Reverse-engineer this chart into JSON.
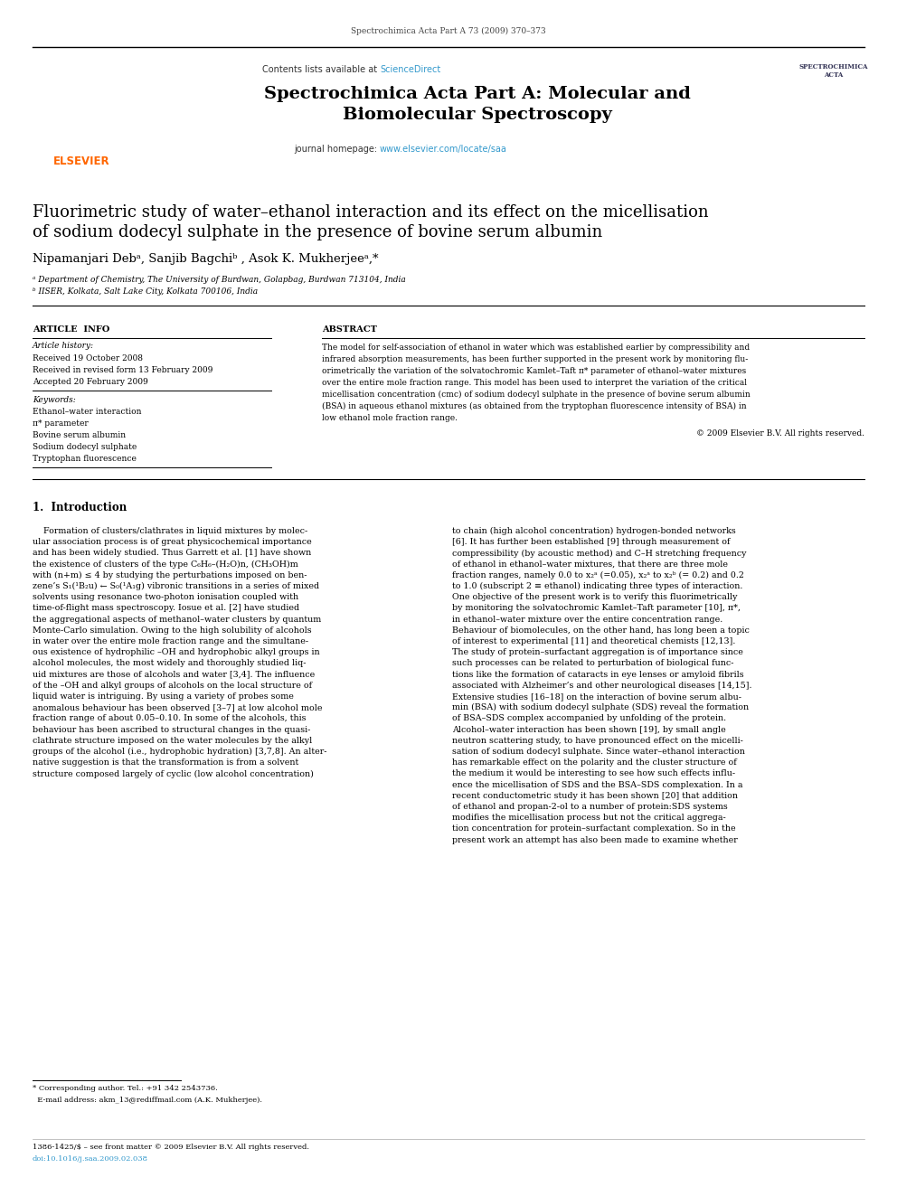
{
  "page_width": 9.92,
  "page_height": 13.23,
  "dpi": 100,
  "bg_color": "#ffffff",
  "header_journal": "Spectrochimica Acta Part A 73 (2009) 370–373",
  "journal_name_line1": "Spectrochimica Acta Part A: Molecular and",
  "journal_name_line2": "Biomolecular Spectroscopy",
  "contents_text_plain": "Contents lists available at ",
  "contents_text_link": "ScienceDirect",
  "sciencedirect_color": "#3399cc",
  "homepage_plain": "journal homepage: ",
  "homepage_link": "www.elsevier.com/locate/saa",
  "homepage_color": "#3399cc",
  "elsevier_color": "#ff6600",
  "header_banner_color": "#1a1a1a",
  "header_bg": "#e8e8e8",
  "cover_bg": "#c8d8c0",
  "article_title_line1": "Fluorimetric study of water–ethanol interaction and its effect on the micellisation",
  "article_title_line2": "of sodium dodecyl sulphate in the presence of bovine serum albumin",
  "authors_line": "Nipamanjari Debᵃ, Sanjib Bagchiᵇ , Asok K. Mukherjeeᵃ,*",
  "affil_a": "ᵃ Department of Chemistry, The University of Burdwan, Golapbag, Burdwan 713104, India",
  "affil_b": "ᵇ IISER, Kolkata, Salt Lake City, Kolkata 700106, India",
  "article_info_title": "ARTICLE  INFO",
  "abstract_title": "ABSTRACT",
  "article_history_label": "Article history:",
  "received": "Received 19 October 2008",
  "received_revised": "Received in revised form 13 February 2009",
  "accepted": "Accepted 20 February 2009",
  "keywords_label": "Keywords:",
  "keyword1": "Ethanol–water interaction",
  "keyword2": "π* parameter",
  "keyword3": "Bovine serum albumin",
  "keyword4": "Sodium dodecyl sulphate",
  "keyword5": "Tryptophan fluorescence",
  "abstract_lines": [
    "The model for self-association of ethanol in water which was established earlier by compressibility and",
    "infrared absorption measurements, has been further supported in the present work by monitoring flu-",
    "orimetrically the variation of the solvatochromic Kamlet–Taft π* parameter of ethanol–water mixtures",
    "over the entire mole fraction range. This model has been used to interpret the variation of the critical",
    "micellisation concentration (cmc) of sodium dodecyl sulphate in the presence of bovine serum albumin",
    "(BSA) in aqueous ethanol mixtures (as obtained from the tryptophan fluorescence intensity of BSA) in",
    "low ethanol mole fraction range."
  ],
  "copyright": "© 2009 Elsevier B.V. All rights reserved.",
  "section1_title": "1.  Introduction",
  "left_col": [
    "    Formation of clusters/clathrates in liquid mixtures by molec-",
    "ular association process is of great physicochemical importance",
    "and has been widely studied. Thus Garrett et al. [1] have shown",
    "the existence of clusters of the type C₆H₆–(H₂O)n, (CH₃OH)m",
    "with (n+m) ≤ 4 by studying the perturbations imposed on ben-",
    "zene’s S₁(¹B₂u) ← S₀(¹A₁g) vibronic transitions in a series of mixed",
    "solvents using resonance two-photon ionisation coupled with",
    "time-of-flight mass spectroscopy. Iosue et al. [2] have studied",
    "the aggregational aspects of methanol–water clusters by quantum",
    "Monte-Carlo simulation. Owing to the high solubility of alcohols",
    "in water over the entire mole fraction range and the simultane-",
    "ous existence of hydrophilic –OH and hydrophobic alkyl groups in",
    "alcohol molecules, the most widely and thoroughly studied liq-",
    "uid mixtures are those of alcohols and water [3,4]. The influence",
    "of the –OH and alkyl groups of alcohols on the local structure of",
    "liquid water is intriguing. By using a variety of probes some",
    "anomalous behaviour has been observed [3–7] at low alcohol mole",
    "fraction range of about 0.05–0.10. In some of the alcohols, this",
    "behaviour has been ascribed to structural changes in the quasi-",
    "clathrate structure imposed on the water molecules by the alkyl",
    "groups of the alcohol (i.e., hydrophobic hydration) [3,7,8]. An alter-",
    "native suggestion is that the transformation is from a solvent",
    "structure composed largely of cyclic (low alcohol concentration)"
  ],
  "right_col": [
    "to chain (high alcohol concentration) hydrogen-bonded networks",
    "[6]. It has further been established [9] through measurement of",
    "compressibility (by acoustic method) and C–H stretching frequency",
    "of ethanol in ethanol–water mixtures, that there are three mole",
    "fraction ranges, namely 0.0 to x₂ᵃ (=0.05), x₂ᵃ to x₂ᵇ (= 0.2) and 0.2",
    "to 1.0 (subscript 2 ≡ ethanol) indicating three types of interaction.",
    "One objective of the present work is to verify this fluorimetrically",
    "by monitoring the solvatochromic Kamlet–Taft parameter [10], π*,",
    "in ethanol–water mixture over the entire concentration range.",
    "Behaviour of biomolecules, on the other hand, has long been a topic",
    "of interest to experimental [11] and theoretical chemists [12,13].",
    "The study of protein–surfactant aggregation is of importance since",
    "such processes can be related to perturbation of biological func-",
    "tions like the formation of cataracts in eye lenses or amyloid fibrils",
    "associated with Alzheimer’s and other neurological diseases [14,15].",
    "Extensive studies [16–18] on the interaction of bovine serum albu-",
    "min (BSA) with sodium dodecyl sulphate (SDS) reveal the formation",
    "of BSA–SDS complex accompanied by unfolding of the protein.",
    "Alcohol–water interaction has been shown [19], by small angle",
    "neutron scattering study, to have pronounced effect on the micelli-",
    "sation of sodium dodecyl sulphate. Since water–ethanol interaction",
    "has remarkable effect on the polarity and the cluster structure of",
    "the medium it would be interesting to see how such effects influ-",
    "ence the micellisation of SDS and the BSA–SDS complexation. In a",
    "recent conductometric study it has been shown [20] that addition",
    "of ethanol and propan-2-ol to a number of protein:SDS systems",
    "modifies the micellisation process but not the critical aggrega-",
    "tion concentration for protein–surfactant complexation. So in the",
    "present work an attempt has also been made to examine whether"
  ],
  "footnote1": "* Corresponding author. Tel.: +91 342 2543736.",
  "footnote2": "  E-mail address: akm_13@rediffmail.com (A.K. Mukherjee).",
  "footer1": "1386-1425/$ – see front matter © 2009 Elsevier B.V. All rights reserved.",
  "footer2": "doi:10.1016/j.saa.2009.02.038"
}
